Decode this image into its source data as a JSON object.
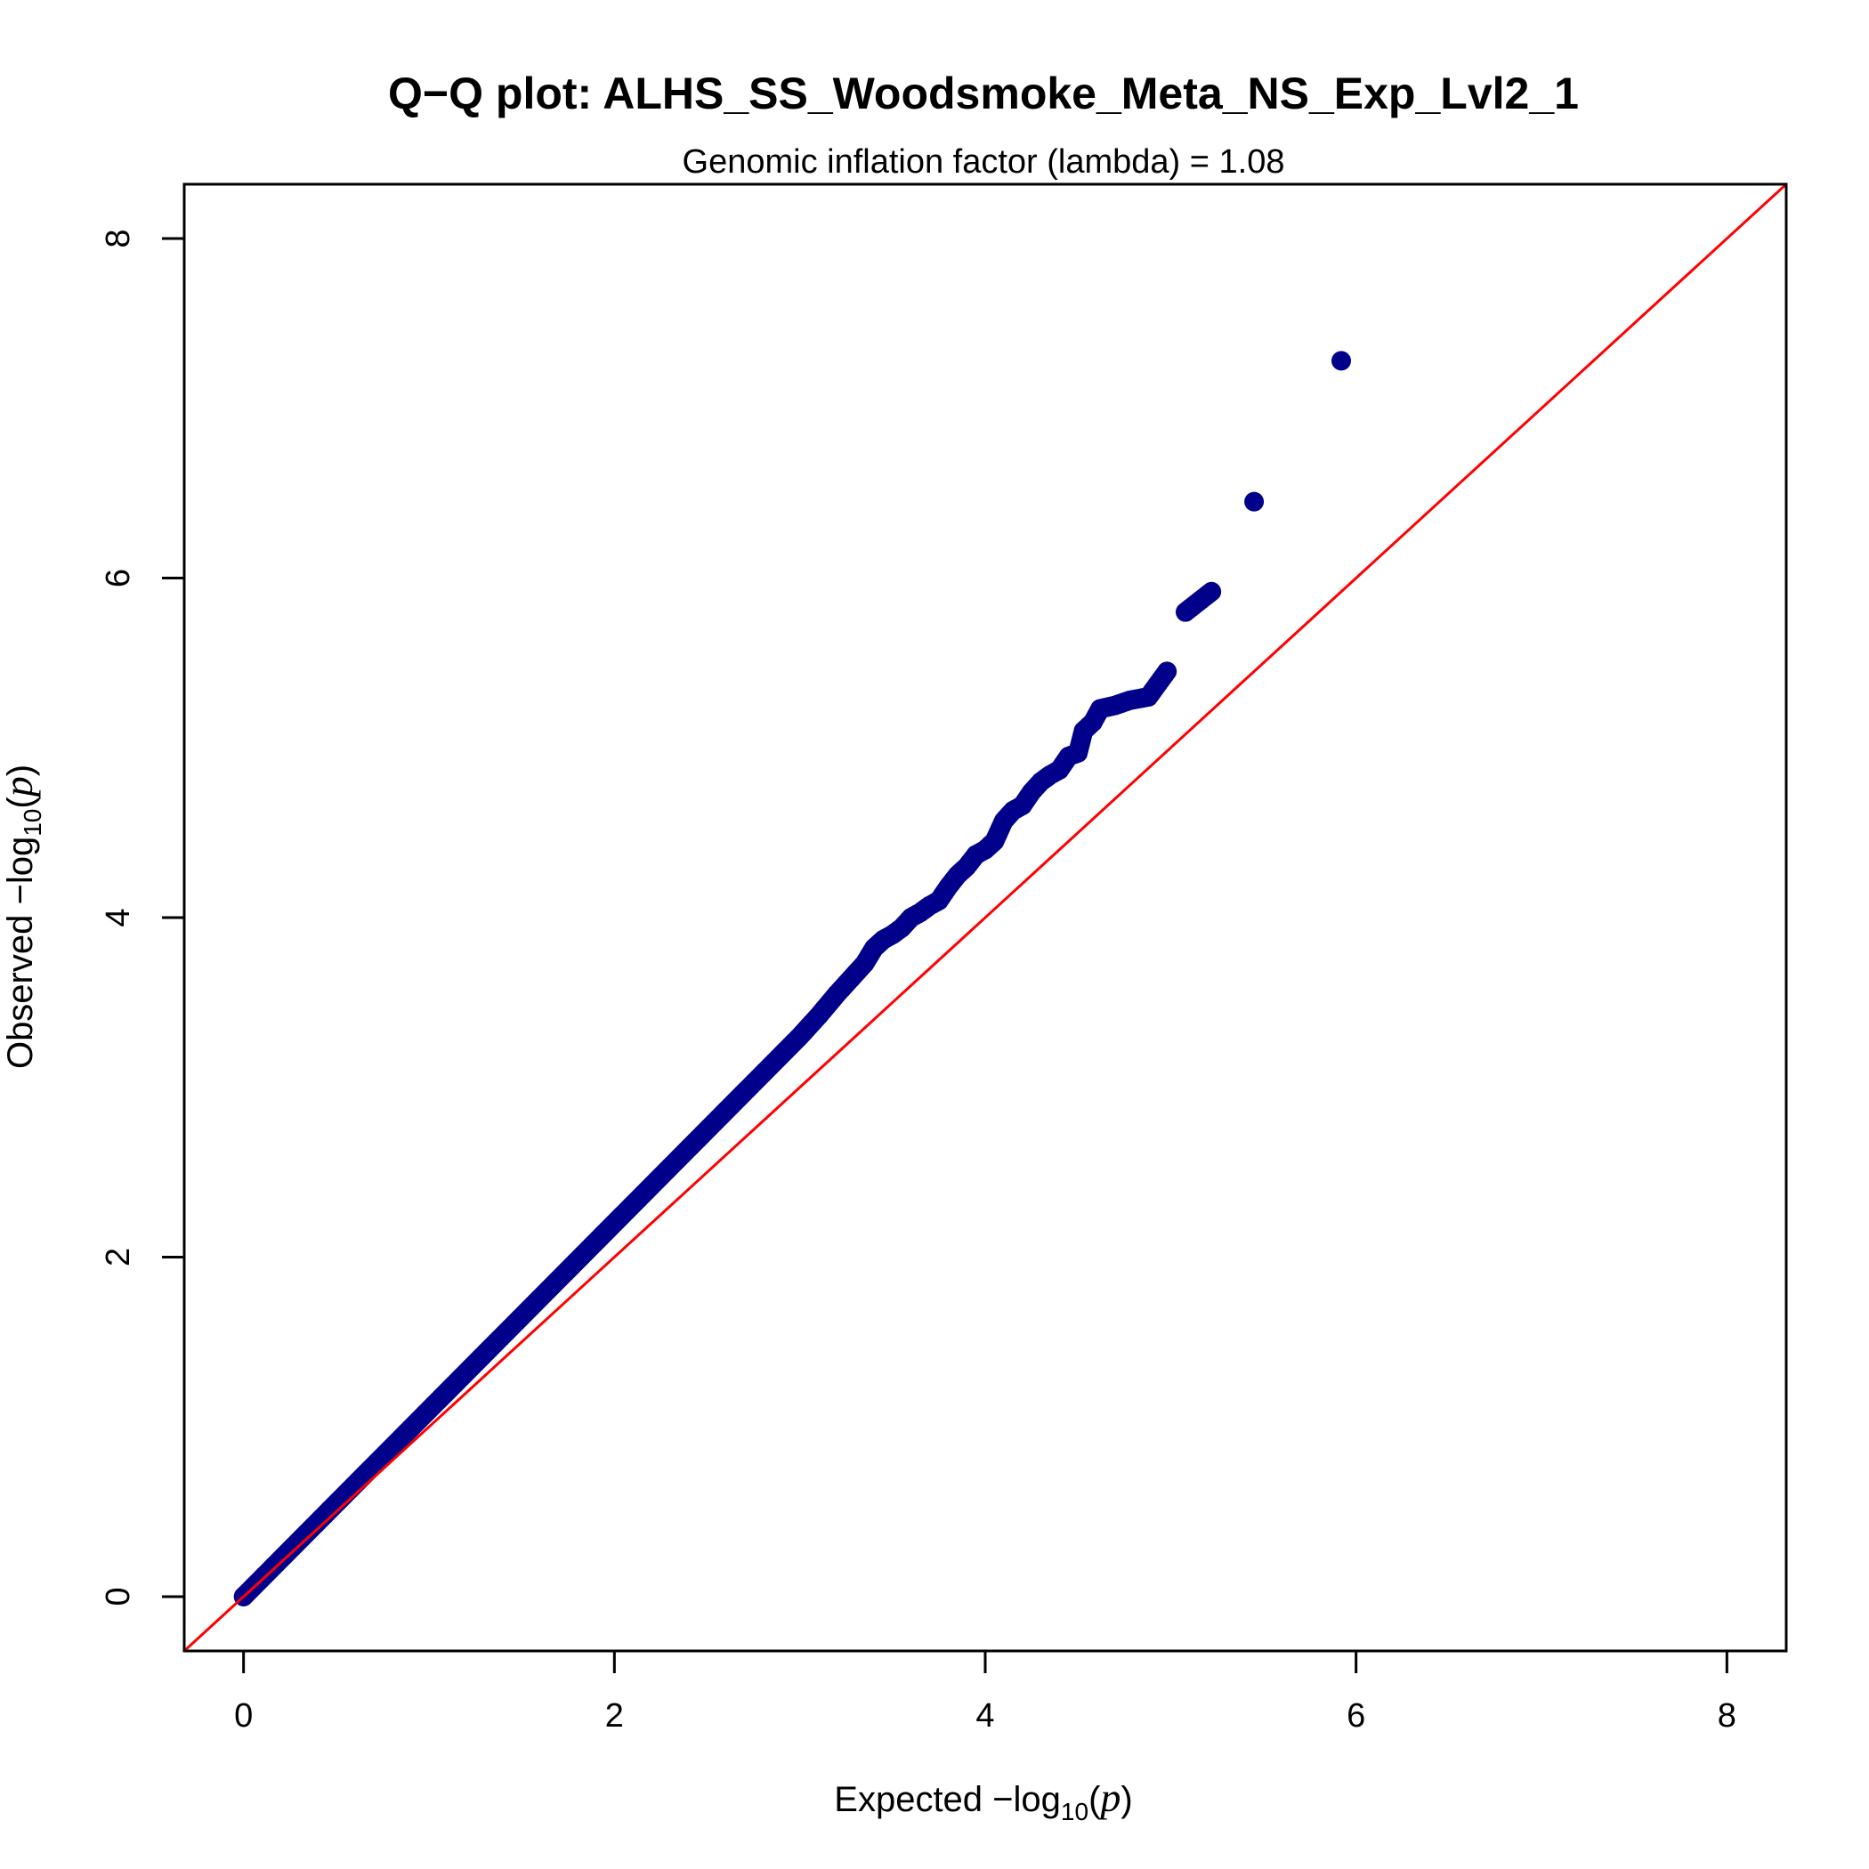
{
  "chart_data": {
    "type": "scatter",
    "title": "Q−Q plot: ALHS_SS_Woodsmoke_Meta_NS_Exp_Lvl2_1",
    "subtitle": "Genomic inflation factor (lambda) = 1.08",
    "xlabel": {
      "prefix": "Expected  −log",
      "sub": "10",
      "open": "(",
      "var": "p",
      "close": ")"
    },
    "ylabel": {
      "prefix": "Observed  −log",
      "sub": "10",
      "open": "(",
      "var": "p",
      "close": ")"
    },
    "xlim": [
      -0.32,
      8.32
    ],
    "ylim": [
      -0.32,
      8.32
    ],
    "xticks": [
      "0",
      "2",
      "4",
      "6",
      "8"
    ],
    "yticks": [
      "0",
      "2",
      "4",
      "6",
      "8"
    ],
    "point_color": "#00008B",
    "reference_line_color": "#FF0000",
    "reference_line": {
      "intercept": 0,
      "slope": 1
    },
    "lambda": 1.08,
    "grid": false,
    "legend": "none",
    "points": [
      [
        0.0,
        0.0
      ],
      [
        0.1,
        0.11
      ],
      [
        0.2,
        0.22
      ],
      [
        0.3,
        0.33
      ],
      [
        0.4,
        0.44
      ],
      [
        0.5,
        0.55
      ],
      [
        0.6,
        0.66
      ],
      [
        0.7,
        0.77
      ],
      [
        0.8,
        0.88
      ],
      [
        0.9,
        0.99
      ],
      [
        1.0,
        1.1
      ],
      [
        1.1,
        1.21
      ],
      [
        1.2,
        1.32
      ],
      [
        1.3,
        1.43
      ],
      [
        1.4,
        1.54
      ],
      [
        1.5,
        1.65
      ],
      [
        1.6,
        1.76
      ],
      [
        1.7,
        1.87
      ],
      [
        1.8,
        1.98
      ],
      [
        1.9,
        2.09
      ],
      [
        2.0,
        2.2
      ],
      [
        2.1,
        2.31
      ],
      [
        2.2,
        2.42
      ],
      [
        2.3,
        2.53
      ],
      [
        2.4,
        2.64
      ],
      [
        2.5,
        2.75
      ],
      [
        2.6,
        2.86
      ],
      [
        2.7,
        2.97
      ],
      [
        2.8,
        3.08
      ],
      [
        2.9,
        3.19
      ],
      [
        3.0,
        3.3
      ],
      [
        3.1,
        3.42
      ],
      [
        3.2,
        3.55
      ],
      [
        3.3,
        3.67
      ],
      [
        3.35,
        3.73
      ],
      [
        3.4,
        3.82
      ],
      [
        3.45,
        3.87
      ],
      [
        3.5,
        3.9
      ],
      [
        3.55,
        3.94
      ],
      [
        3.6,
        4.0
      ],
      [
        3.65,
        4.03
      ],
      [
        3.7,
        4.07
      ],
      [
        3.75,
        4.1
      ],
      [
        3.8,
        4.18
      ],
      [
        3.85,
        4.25
      ],
      [
        3.9,
        4.3
      ],
      [
        3.95,
        4.37
      ],
      [
        4.0,
        4.4
      ],
      [
        4.05,
        4.45
      ],
      [
        4.1,
        4.57
      ],
      [
        4.15,
        4.63
      ],
      [
        4.2,
        4.66
      ],
      [
        4.25,
        4.74
      ],
      [
        4.3,
        4.8
      ],
      [
        4.35,
        4.84
      ],
      [
        4.4,
        4.87
      ],
      [
        4.45,
        4.95
      ],
      [
        4.5,
        4.97
      ],
      [
        4.53,
        5.1
      ],
      [
        4.58,
        5.15
      ],
      [
        4.62,
        5.23
      ],
      [
        4.7,
        5.25
      ],
      [
        4.78,
        5.28
      ],
      [
        4.88,
        5.3
      ],
      [
        4.98,
        5.45
      ],
      [
        5.08,
        5.8
      ],
      [
        5.22,
        5.92
      ],
      [
        5.45,
        6.45
      ],
      [
        5.92,
        7.28
      ]
    ]
  }
}
